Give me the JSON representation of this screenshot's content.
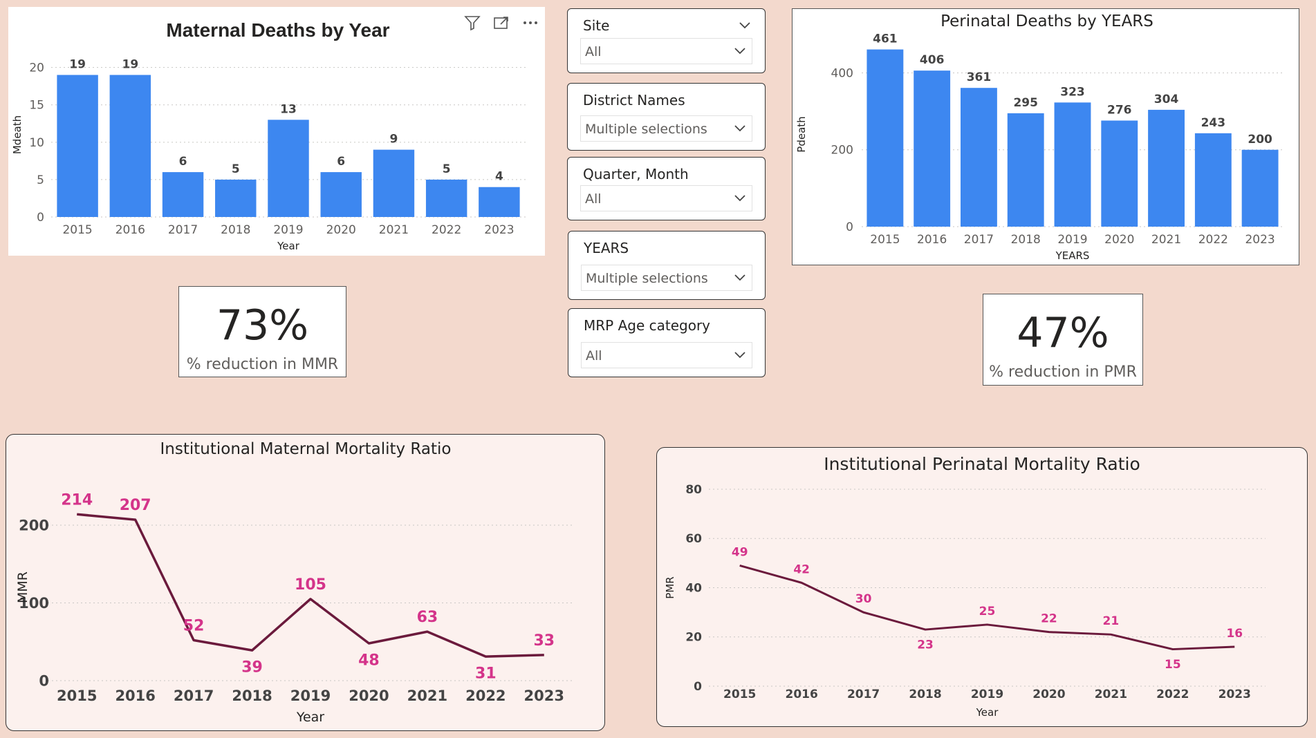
{
  "maternal_deaths_chart": {
    "icons": [
      "filter-icon",
      "focus-mode-icon",
      "more-options-icon"
    ]
  },
  "kpis": {
    "mmr": {
      "value": "73%",
      "label": "% reduction in MMR"
    },
    "pmr": {
      "value": "47%",
      "label": "% reduction in PMR"
    }
  },
  "slicers": [
    {
      "title": "Site",
      "value": "All"
    },
    {
      "title": "District Names",
      "value": "Multiple selections"
    },
    {
      "title": "Quarter, Month",
      "value": "All"
    },
    {
      "title": "YEARS",
      "value": "Multiple selections"
    },
    {
      "title": "MRP Age category",
      "value": "All"
    }
  ],
  "colors": {
    "background": "#f3d9cd",
    "bar": "#3d87f0",
    "line": "#6b1a3c",
    "line_label": "#d4348a",
    "card_pink": "#fcf1ee"
  },
  "chart_data": [
    {
      "id": "maternal_deaths",
      "type": "bar",
      "title": "Maternal Deaths by Year",
      "xlabel": "Year",
      "ylabel": "Mdeath",
      "categories": [
        "2015",
        "2016",
        "2017",
        "2018",
        "2019",
        "2020",
        "2021",
        "2022",
        "2023"
      ],
      "values": [
        19,
        19,
        6,
        5,
        13,
        6,
        9,
        5,
        4
      ],
      "ylim": [
        0,
        22
      ],
      "yticks": [
        "0",
        "5",
        "10",
        "15",
        "20"
      ],
      "labels": [
        "19",
        "19",
        "6",
        "5",
        "13",
        "6",
        "9",
        "5",
        "4"
      ],
      "grid": true
    },
    {
      "id": "perinatal_deaths",
      "type": "bar",
      "title": "Perinatal Deaths by YEARS",
      "xlabel": "YEARS",
      "ylabel": "Pdeath",
      "categories": [
        "2015",
        "2016",
        "2017",
        "2018",
        "2019",
        "2020",
        "2021",
        "2022",
        "2023"
      ],
      "values": [
        461,
        406,
        361,
        295,
        323,
        276,
        304,
        243,
        200
      ],
      "ylim": [
        0,
        480
      ],
      "yticks": [
        "0",
        "200",
        "400"
      ],
      "labels": [
        "461",
        "406",
        "361",
        "295",
        "323",
        "276",
        "304",
        "243",
        "200"
      ],
      "grid": true
    },
    {
      "id": "institutional_mmr",
      "type": "line",
      "title": "Institutional Maternal Mortality Ratio",
      "xlabel": "Year",
      "ylabel": "MMR",
      "categories": [
        "2015",
        "2016",
        "2017",
        "2018",
        "2019",
        "2020",
        "2021",
        "2022",
        "2023"
      ],
      "values": [
        214,
        207,
        52,
        39,
        105,
        48,
        63,
        31,
        33
      ],
      "ylim": [
        0,
        240
      ],
      "yticks": [
        "0",
        "100",
        "200"
      ],
      "labels": [
        "214",
        "207",
        "52",
        "39",
        "105",
        "48",
        "63",
        "31",
        "33"
      ],
      "grid": true
    },
    {
      "id": "institutional_pmr",
      "type": "line",
      "title": "Institutional Perinatal Mortality Ratio",
      "xlabel": "Year",
      "ylabel": "PMR",
      "categories": [
        "2015",
        "2016",
        "2017",
        "2018",
        "2019",
        "2020",
        "2021",
        "2022",
        "2023"
      ],
      "values": [
        49,
        42,
        30,
        23,
        25,
        22,
        21,
        15,
        16
      ],
      "ylim": [
        0,
        80
      ],
      "yticks": [
        "0",
        "20",
        "40",
        "60",
        "80"
      ],
      "labels": [
        "49",
        "42",
        "30",
        "23",
        "25",
        "22",
        "21",
        "15",
        "16"
      ],
      "grid": true
    }
  ]
}
